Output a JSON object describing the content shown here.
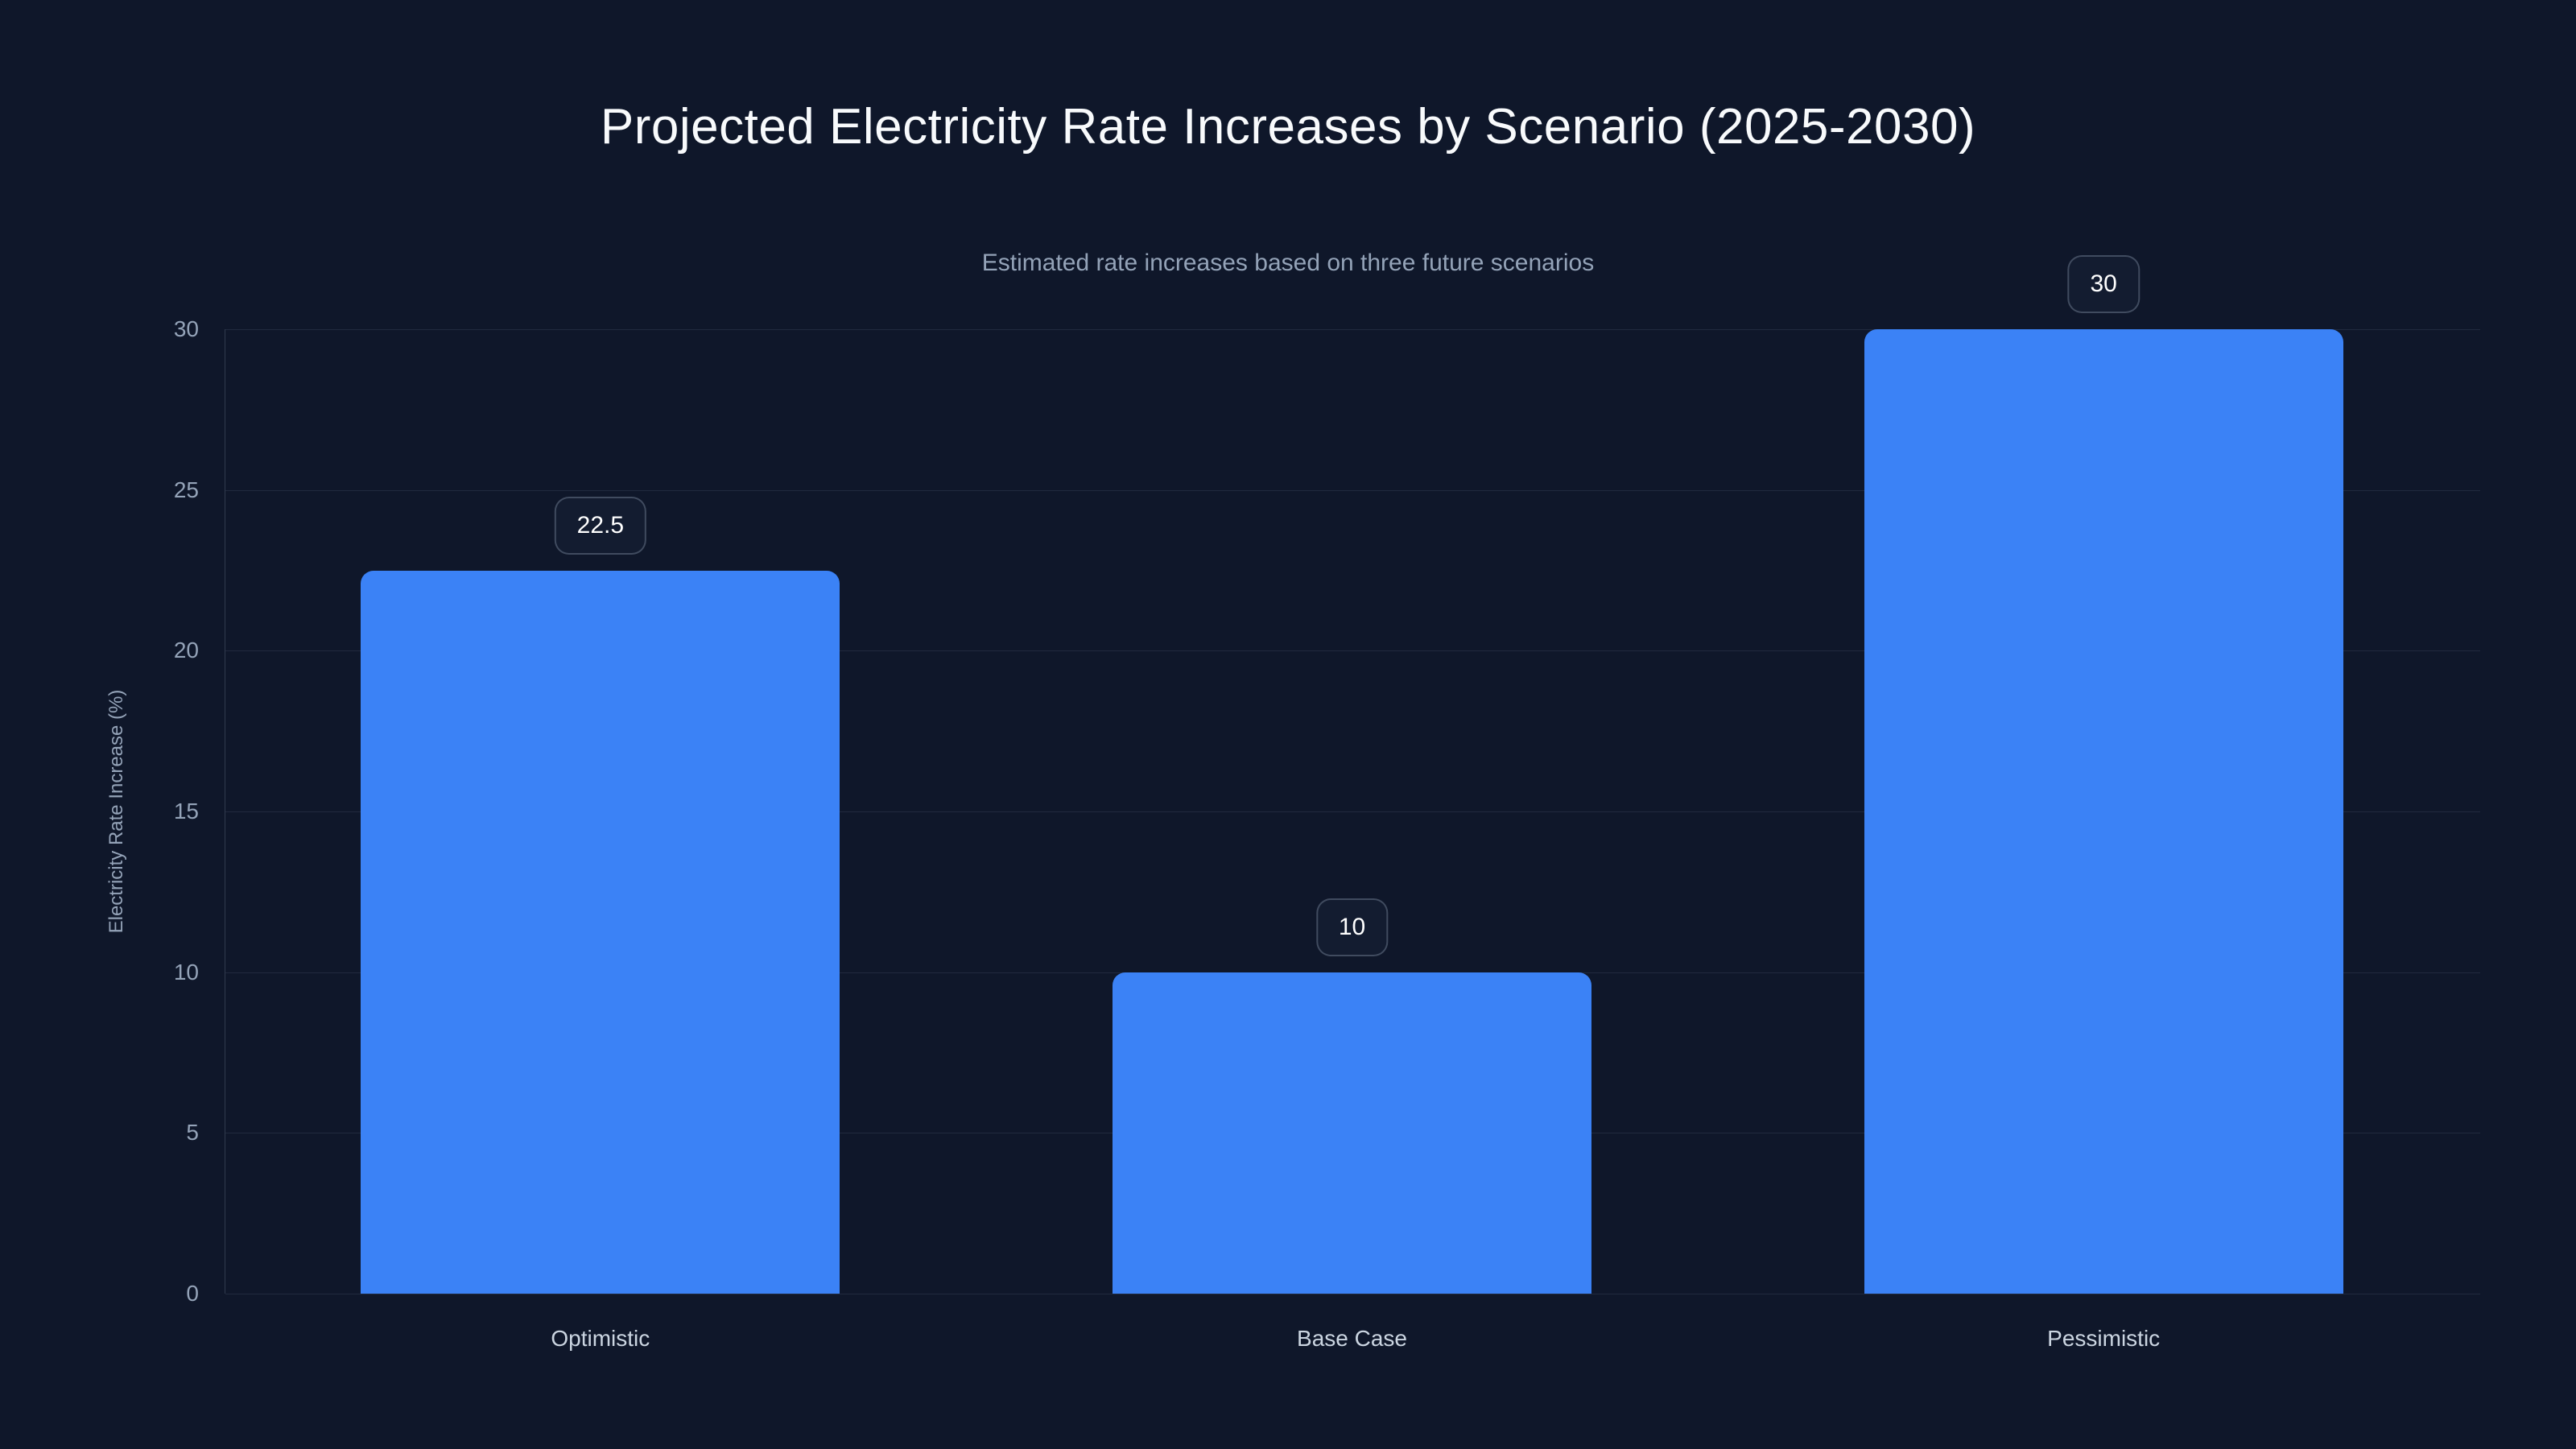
{
  "header": {
    "title": "Projected Electricity Rate Increases by Scenario (2025-2030)",
    "subtitle": "Estimated rate increases based on three future scenarios"
  },
  "chart_data": {
    "type": "bar",
    "title": "Projected Electricity Rate Increases by Scenario (2025-2030)",
    "subtitle": "Estimated rate increases based on three future scenarios",
    "categories": [
      "Optimistic",
      "Base Case",
      "Pessimistic"
    ],
    "values": [
      22.5,
      10,
      30
    ],
    "value_labels": [
      "22.5",
      "10",
      "30"
    ],
    "xlabel": "",
    "ylabel": "Electricity Rate Increase (%)",
    "ylim": [
      0,
      30
    ],
    "yticks": [
      0,
      5,
      10,
      15,
      20,
      25,
      30
    ],
    "grid": "horizontal-only",
    "legend_position": "none",
    "colors": {
      "background": "#0f172a",
      "bar": "#3b82f6",
      "gridline": "rgba(148,163,184,0.14)",
      "axis_line": "rgba(148,163,184,0.25)",
      "title_text": "#f8fafc",
      "subtitle_text": "#94a3b8",
      "tick_text": "#94a3b8",
      "category_text": "#cbd5e1",
      "badge_border": "rgba(148,163,184,0.35)",
      "badge_background": "#131c30",
      "badge_text": "#ffffff"
    }
  }
}
